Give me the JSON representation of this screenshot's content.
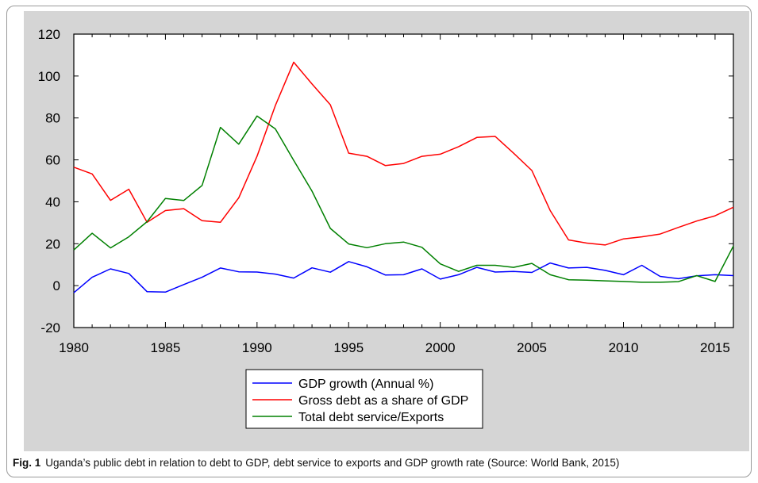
{
  "caption": {
    "label": "Fig. 1",
    "text": "Uganda’s public debt in relation to debt to GDP, debt service to exports and GDP growth rate (Source: World Bank, 2015)"
  },
  "chart_data": {
    "type": "line",
    "title": "",
    "xlabel": "",
    "ylabel": "",
    "xlim": [
      1980,
      2016
    ],
    "ylim": [
      -20,
      120
    ],
    "x_ticks": [
      "1980",
      "1985",
      "1990",
      "1995",
      "2000",
      "2005",
      "2010",
      "2015"
    ],
    "y_ticks": [
      "120",
      "100",
      "80",
      "60",
      "40",
      "20",
      "0",
      "-20"
    ],
    "grid": false,
    "legend_position": "bottom-center",
    "x": [
      1980,
      1981,
      1982,
      1983,
      1984,
      1985,
      1986,
      1987,
      1988,
      1989,
      1990,
      1991,
      1992,
      1993,
      1994,
      1995,
      1996,
      1997,
      1998,
      1999,
      2000,
      2001,
      2002,
      2003,
      2004,
      2005,
      2006,
      2007,
      2008,
      2009,
      2010,
      2011,
      2012,
      2013,
      2014,
      2015,
      2016
    ],
    "series": [
      {
        "name": "GDP  growth (Annual %)",
        "color": "#0000ff",
        "values": [
          -3.4,
          4.0,
          8.0,
          5.8,
          -2.9,
          -3.1,
          0.5,
          4.0,
          8.4,
          6.6,
          6.5,
          5.5,
          3.6,
          8.5,
          6.4,
          11.5,
          9.0,
          5.1,
          5.2,
          8.0,
          3.1,
          5.2,
          8.7,
          6.5,
          6.8,
          6.3,
          10.8,
          8.4,
          8.7,
          7.3,
          5.2,
          9.7,
          4.4,
          3.3,
          4.7,
          5.2,
          4.8
        ]
      },
      {
        "name": "Gross debt as a share of GDP",
        "color": "#ff0000",
        "values": [
          56.5,
          53.3,
          40.7,
          46.0,
          30.2,
          35.8,
          36.7,
          31.0,
          30.2,
          41.9,
          61.7,
          85.9,
          106.6,
          96.2,
          86.3,
          63.2,
          61.7,
          57.3,
          58.3,
          61.7,
          62.7,
          66.3,
          70.7,
          71.2,
          63.2,
          54.9,
          35.8,
          21.8,
          20.3,
          19.4,
          22.3,
          23.3,
          24.6,
          27.8,
          30.8,
          33.3,
          37.4
        ]
      },
      {
        "name": "Total debt service/Exports",
        "color": "#008000",
        "values": [
          17.0,
          25.0,
          18.0,
          23.3,
          30.5,
          41.6,
          40.6,
          47.8,
          75.5,
          67.5,
          80.9,
          74.8,
          59.8,
          45.1,
          27.3,
          19.9,
          18.1,
          20.0,
          20.8,
          18.3,
          10.4,
          6.8,
          9.7,
          9.7,
          8.7,
          10.6,
          5.2,
          2.8,
          2.6,
          2.3,
          2.0,
          1.6,
          1.6,
          1.9,
          4.8,
          2.0,
          18.9
        ]
      }
    ]
  }
}
